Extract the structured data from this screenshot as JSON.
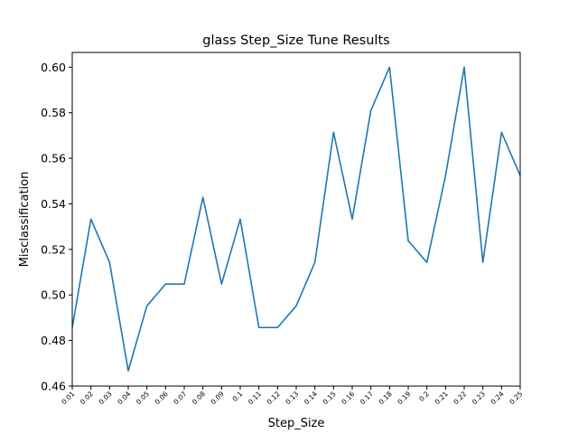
{
  "chart_data": {
    "type": "line",
    "title": "glass Step_Size Tune Results",
    "xlabel": "Step_Size",
    "ylabel": "Misclassification",
    "ylim": [
      0.46,
      0.605
    ],
    "yticks": [
      "0.46",
      "0.48",
      "0.50",
      "0.52",
      "0.54",
      "0.56",
      "0.58",
      "0.60"
    ],
    "categories": [
      "0.01",
      "0.02",
      "0.03",
      "0.04",
      "0.05",
      "0.06",
      "0.07",
      "0.08",
      "0.09",
      "0.1",
      "0.11",
      "0.12",
      "0.13",
      "0.14",
      "0.15",
      "0.16",
      "0.17",
      "0.18",
      "0.19",
      "0.2",
      "0.21",
      "0.22",
      "0.23",
      "0.24",
      "0.25"
    ],
    "series": [
      {
        "values": [
          0.4857,
          0.5333,
          0.5143,
          0.4667,
          0.4952,
          0.5048,
          0.5048,
          0.5429,
          0.5048,
          0.5333,
          0.4857,
          0.4857,
          0.4952,
          0.5143,
          0.5714,
          0.5333,
          0.581,
          0.6,
          0.5238,
          0.5143,
          0.5524,
          0.6,
          0.5143,
          0.5714,
          0.5524
        ],
        "color": "#1f77b4"
      }
    ],
    "grid": false,
    "legend": "none"
  }
}
